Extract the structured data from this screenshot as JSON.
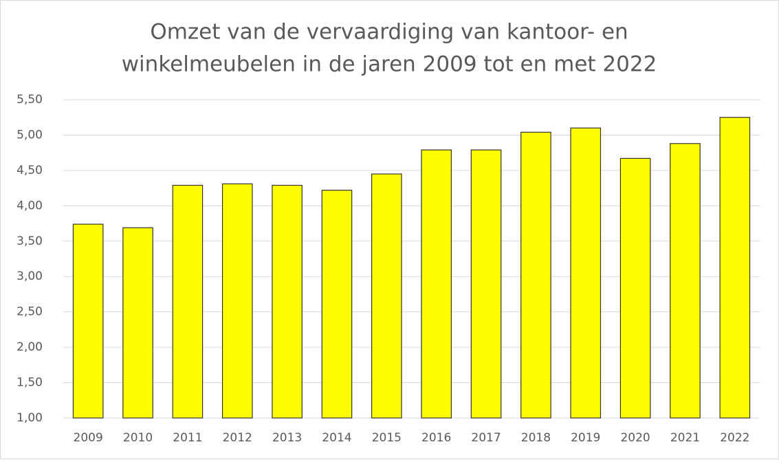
{
  "chart_data": {
    "type": "bar",
    "title": [
      "Omzet van de vervaardiging van kantoor- en",
      "winkelmeubelen in de jaren 2009 tot en met 2022"
    ],
    "categories": [
      "2009",
      "2010",
      "2011",
      "2012",
      "2013",
      "2014",
      "2015",
      "2016",
      "2017",
      "2018",
      "2019",
      "2020",
      "2021",
      "2022"
    ],
    "values": [
      3.74,
      3.69,
      4.29,
      4.31,
      4.29,
      4.22,
      4.45,
      4.79,
      4.79,
      5.04,
      5.1,
      4.67,
      4.88,
      5.25
    ],
    "color": "#ffff00",
    "ylim": [
      1,
      5.5
    ],
    "yticks": [
      {
        "value": 1,
        "label": "1,00"
      },
      {
        "value": 1.5,
        "label": "1,50"
      },
      {
        "value": 2,
        "label": "2,00"
      },
      {
        "value": 2.5,
        "label": "2,50"
      },
      {
        "value": 3,
        "label": "3,00"
      },
      {
        "value": 3.5,
        "label": "3,50"
      },
      {
        "value": 4,
        "label": "4,00"
      },
      {
        "value": 4.5,
        "label": "4,50"
      },
      {
        "value": 5,
        "label": "5,00"
      },
      {
        "value": 5.5,
        "label": "5,50"
      }
    ],
    "grid": true
  }
}
